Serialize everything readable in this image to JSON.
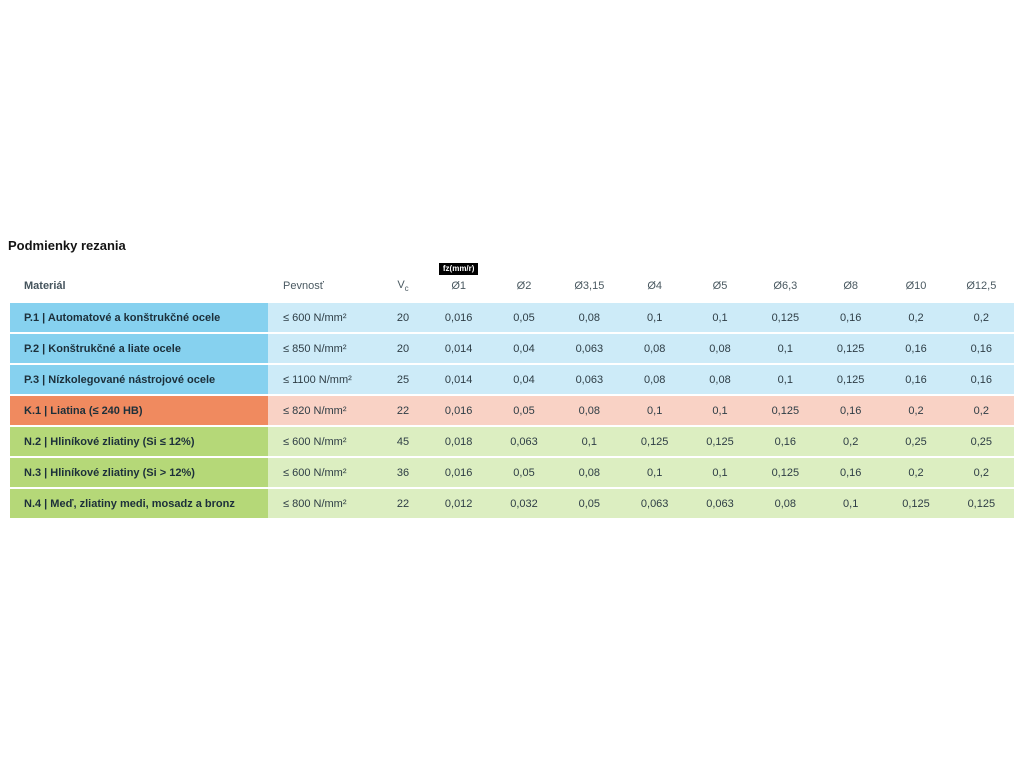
{
  "page": {
    "title": "Podmienky rezania"
  },
  "table": {
    "unit_badge": "fz(mm/r)",
    "col_material": "Materiál",
    "col_strength": "Pevnosť",
    "col_vc_main": "V",
    "col_vc_sub": "c",
    "diameters": [
      "Ø1",
      "Ø2",
      "Ø3,15",
      "Ø4",
      "Ø5",
      "Ø6,3",
      "Ø8",
      "Ø10",
      "Ø12,5"
    ],
    "colors": {
      "P_head": "#86d1ef",
      "P_body": "#cdebf8",
      "K_head": "#f08a5f",
      "K_body": "#f9d2c5",
      "N_head": "#b5d878",
      "N_body": "#dceec1"
    },
    "rows": [
      {
        "group": "P",
        "material": "P.1 | Automatové a konštrukčné ocele",
        "strength": "≤ 600 N/mm²",
        "vc": "20",
        "values": [
          "0,016",
          "0,05",
          "0,08",
          "0,1",
          "0,1",
          "0,125",
          "0,16",
          "0,2",
          "0,2"
        ]
      },
      {
        "group": "P",
        "material": "P.2 | Konštrukčné a liate ocele",
        "strength": "≤ 850 N/mm²",
        "vc": "20",
        "values": [
          "0,014",
          "0,04",
          "0,063",
          "0,08",
          "0,08",
          "0,1",
          "0,125",
          "0,16",
          "0,16"
        ]
      },
      {
        "group": "P",
        "material": "P.3 | Nízkolegované nástrojové ocele",
        "strength": "≤ 1100 N/mm²",
        "vc": "25",
        "values": [
          "0,014",
          "0,04",
          "0,063",
          "0,08",
          "0,08",
          "0,1",
          "0,125",
          "0,16",
          "0,16"
        ]
      },
      {
        "group": "K",
        "material": "K.1 | Liatina (≤ 240 HB)",
        "strength": "≤ 820 N/mm²",
        "vc": "22",
        "values": [
          "0,016",
          "0,05",
          "0,08",
          "0,1",
          "0,1",
          "0,125",
          "0,16",
          "0,2",
          "0,2"
        ]
      },
      {
        "group": "N",
        "material": "N.2 | Hliníkové zliatiny (Si ≤ 12%)",
        "strength": "≤ 600 N/mm²",
        "vc": "45",
        "values": [
          "0,018",
          "0,063",
          "0,1",
          "0,125",
          "0,125",
          "0,16",
          "0,2",
          "0,25",
          "0,25"
        ]
      },
      {
        "group": "N",
        "material": "N.3 | Hliníkové zliatiny (Si > 12%)",
        "strength": "≤ 600 N/mm²",
        "vc": "36",
        "values": [
          "0,016",
          "0,05",
          "0,08",
          "0,1",
          "0,1",
          "0,125",
          "0,16",
          "0,2",
          "0,2"
        ]
      },
      {
        "group": "N",
        "material": "N.4 | Meď, zliatiny medi, mosadz a bronz",
        "strength": "≤ 800 N/mm²",
        "vc": "22",
        "values": [
          "0,012",
          "0,032",
          "0,05",
          "0,063",
          "0,063",
          "0,08",
          "0,1",
          "0,125",
          "0,125"
        ]
      }
    ]
  }
}
